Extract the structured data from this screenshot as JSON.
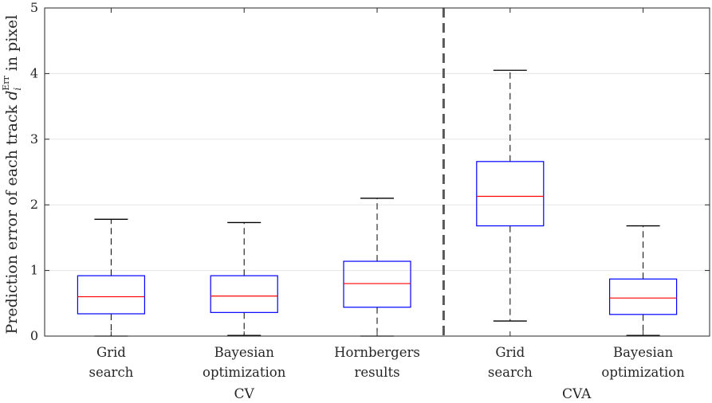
{
  "chart_data": {
    "type": "box",
    "ylabel": "Prediction error of each track d_i^Err in pixel",
    "ylabel_main": "Prediction error of each track ",
    "ylabel_var": "d",
    "ylabel_sub": "i",
    "ylabel_sup": "Err",
    "ylabel_tail": " in pixel",
    "ylim": [
      0,
      5
    ],
    "yticks": [
      "0",
      "1",
      "2",
      "3",
      "4",
      "5"
    ],
    "grid": "horizontal",
    "categories": [
      [
        "Grid",
        "search"
      ],
      [
        "Bayesian",
        "optimization"
      ],
      [
        "Hornbergers",
        "results"
      ],
      [
        "Grid",
        "search"
      ],
      [
        "Bayesian",
        "optimization"
      ]
    ],
    "groups": [
      {
        "label": "CV",
        "categories": [
          0,
          1,
          2
        ]
      },
      {
        "label": "CVA",
        "categories": [
          3,
          4
        ]
      }
    ],
    "separator_after_category": 2,
    "boxes": [
      {
        "min": 0.0,
        "q1": 0.34,
        "median": 0.6,
        "q3": 0.92,
        "max": 1.78
      },
      {
        "min": 0.01,
        "q1": 0.36,
        "median": 0.61,
        "q3": 0.92,
        "max": 1.73
      },
      {
        "min": 0.0,
        "q1": 0.44,
        "median": 0.8,
        "q3": 1.14,
        "max": 2.1
      },
      {
        "min": 0.23,
        "q1": 1.68,
        "median": 2.13,
        "q3": 2.66,
        "max": 4.05
      },
      {
        "min": 0.01,
        "q1": 0.33,
        "median": 0.58,
        "q3": 0.87,
        "max": 1.68
      }
    ],
    "colors": {
      "box": "#0000ff",
      "median": "#ff0000",
      "whisker": "#000000",
      "separator": "#595959",
      "grid": "#e6e6e6",
      "axis": "#262626"
    }
  }
}
